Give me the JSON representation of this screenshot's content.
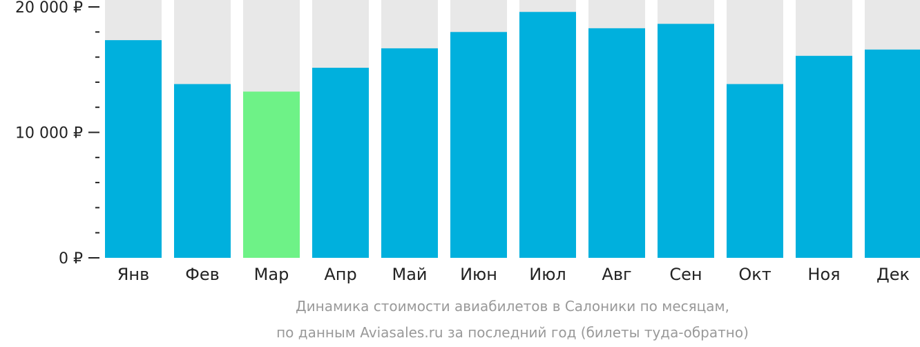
{
  "chart_data": {
    "type": "bar",
    "categories": [
      "Янв",
      "Фев",
      "Мар",
      "Апр",
      "Май",
      "Июн",
      "Июл",
      "Авг",
      "Сен",
      "Окт",
      "Ноя",
      "Дек"
    ],
    "values": [
      17350,
      13850,
      13250,
      15150,
      16700,
      18000,
      19600,
      18300,
      18650,
      13850,
      16100,
      16600
    ],
    "highlight_index": 2,
    "ylim": [
      0,
      20000
    ],
    "yticks": [
      {
        "value": 0,
        "label": "0 ₽"
      },
      {
        "value": 10000,
        "label": "10 000 ₽"
      },
      {
        "value": 20000,
        "label": "20 000 ₽"
      }
    ],
    "minor_tick_step": 2000,
    "grid": false,
    "colors": {
      "bar": "#00b0dd",
      "highlight": "#6ef287",
      "background_bar": "#e8e8e8",
      "axis": "#222222"
    },
    "caption": [
      "Динамика стоимости авиабилетов в Салоники по месяцам,",
      "по данным Aviasales.ru за последний год (билеты туда-обратно)"
    ]
  }
}
